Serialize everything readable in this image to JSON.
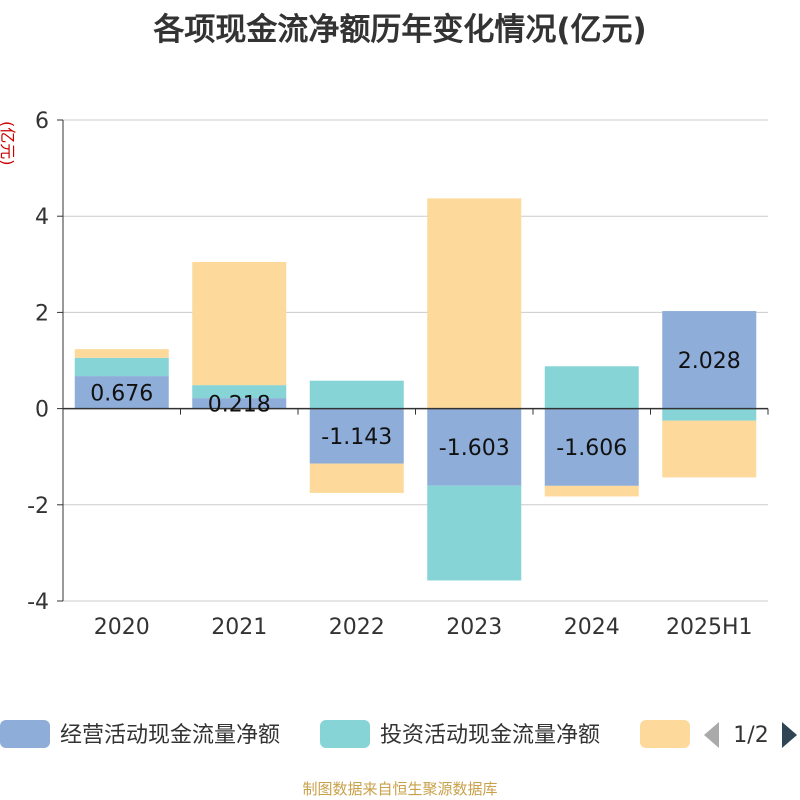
{
  "colors": {
    "operating": "#8eadd9",
    "investing": "#86d4d6",
    "financing": "#fdd99b",
    "axis": "#333333",
    "grid": "#cccccc",
    "unit": "#cc0000",
    "footer": "#c8a14a",
    "pager_active": "#2f4554",
    "pager_inactive": "#aaaaaa"
  },
  "icons": {
    "prev": "triangle-left-icon",
    "next": "triangle-right-icon"
  },
  "footer": {
    "source": "制图数据来自恒生聚源数据库"
  },
  "legend": {
    "items": [
      "经营活动现金流量净额",
      "投资活动现金流量净额",
      ""
    ],
    "page": "1/2"
  },
  "chart_data": {
    "type": "bar",
    "stacked": true,
    "title": "各项现金流净额历年变化情况(亿元)",
    "ylabel": "(亿元)",
    "xlabel": "",
    "categories": [
      "2020",
      "2021",
      "2022",
      "2023",
      "2024",
      "2025H1"
    ],
    "ylim": [
      -4,
      6
    ],
    "yticks": [
      -4,
      -2,
      0,
      2,
      4,
      6
    ],
    "grid": true,
    "legend_position": "bottom",
    "series": [
      {
        "name": "经营活动现金流量净额",
        "values": [
          0.676,
          0.218,
          -1.143,
          -1.603,
          -1.606,
          2.028
        ],
        "labels": [
          "0.676",
          "0.218",
          "-1.143",
          "-1.603",
          "-1.606",
          "2.028"
        ]
      },
      {
        "name": "投资活动现金流量净额",
        "values": [
          0.38,
          0.27,
          0.58,
          -1.97,
          0.88,
          -0.25
        ]
      },
      {
        "values": [
          0.18,
          2.56,
          -0.61,
          4.37,
          -0.22,
          -1.18
        ]
      }
    ]
  }
}
